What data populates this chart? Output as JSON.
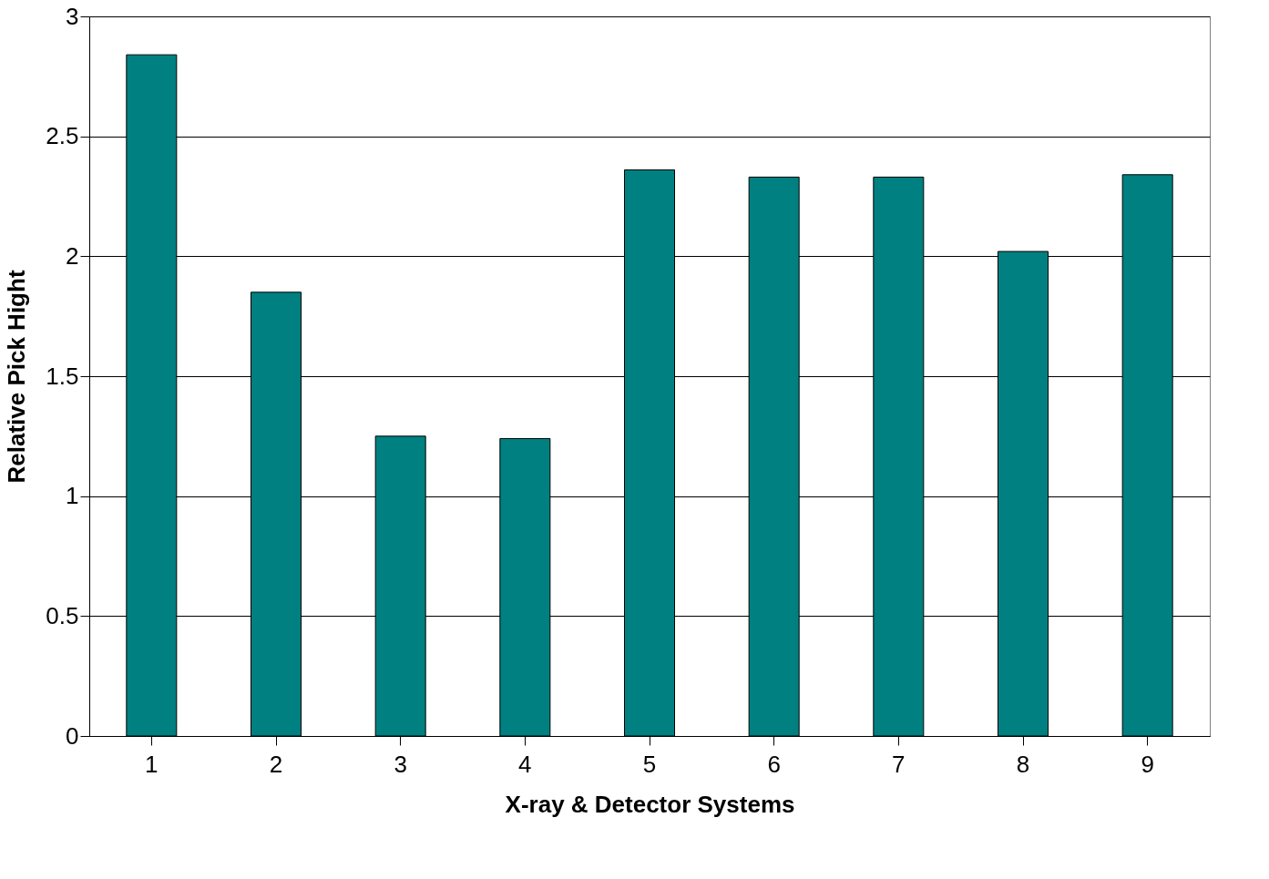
{
  "chart_data": {
    "type": "bar",
    "xlabel": "X-ray & Detector Systems",
    "ylabel": "Relative Pick Hight",
    "categories": [
      "1",
      "2",
      "3",
      "4",
      "5",
      "6",
      "7",
      "8",
      "9"
    ],
    "values": [
      2.84,
      1.85,
      1.25,
      1.24,
      2.36,
      2.33,
      2.33,
      2.02,
      2.34
    ],
    "color": "#008080",
    "ylim": [
      0,
      3
    ],
    "yticks": [
      0,
      0.5,
      1,
      1.5,
      2,
      2.5,
      3
    ],
    "grid": "y"
  }
}
